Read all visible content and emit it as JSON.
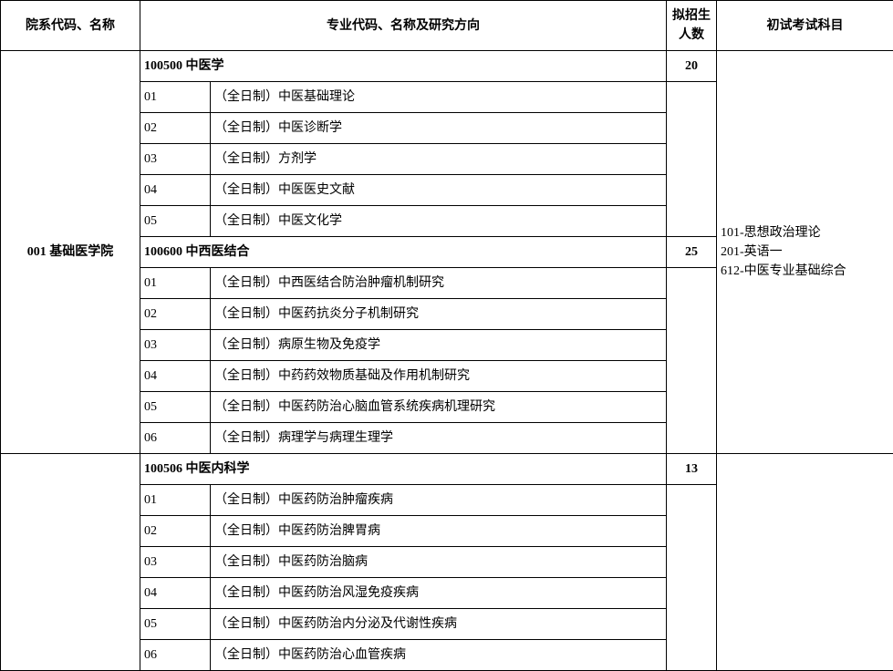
{
  "headers": {
    "dept": "院系代码、名称",
    "major": "专业代码、名称及研究方向",
    "num_l1": "拟招生",
    "num_l2": "人数",
    "exam": "初试考试科目"
  },
  "dept1": {
    "name": "001 基础医学院",
    "exam_l1": "101-思想政治理论",
    "exam_l2": "201-英语一",
    "exam_l3": "612-中医专业基础综合",
    "major1": {
      "title": "100500 中医学",
      "num": "20",
      "directions": [
        {
          "code": "01",
          "name": "（全日制）中医基础理论"
        },
        {
          "code": "02",
          "name": "（全日制）中医诊断学"
        },
        {
          "code": "03",
          "name": "（全日制）方剂学"
        },
        {
          "code": "04",
          "name": "（全日制）中医医史文献"
        },
        {
          "code": "05",
          "name": "（全日制）中医文化学"
        }
      ]
    },
    "major2": {
      "title": "100600 中西医结合",
      "num": "25",
      "directions": [
        {
          "code": "01",
          "name": "（全日制）中西医结合防治肿瘤机制研究"
        },
        {
          "code": "02",
          "name": "（全日制）中医药抗炎分子机制研究"
        },
        {
          "code": "03",
          "name": "（全日制）病原生物及免疫学"
        },
        {
          "code": "04",
          "name": "（全日制）中药药效物质基础及作用机制研究"
        },
        {
          "code": "05",
          "name": "（全日制）中医药防治心脑血管系统疾病机理研究"
        },
        {
          "code": "06",
          "name": "（全日制）病理学与病理生理学"
        }
      ]
    }
  },
  "dept2": {
    "major1": {
      "title": "100506 中医内科学",
      "num": "13",
      "directions": [
        {
          "code": "01",
          "name": "（全日制）中医药防治肿瘤疾病"
        },
        {
          "code": "02",
          "name": "（全日制）中医药防治脾胃病"
        },
        {
          "code": "03",
          "name": "（全日制）中医药防治脑病"
        },
        {
          "code": "04",
          "name": "（全日制）中医药防治风湿免疫疾病"
        },
        {
          "code": "05",
          "name": "（全日制）中医药防治内分泌及代谢性疾病"
        },
        {
          "code": "06",
          "name": "（全日制）中医药防治心血管疾病"
        }
      ]
    }
  },
  "style": {
    "font_family": "SimSun",
    "font_size_pt": 10.5,
    "border_color": "#000000",
    "background_color": "#ffffff",
    "text_color": "#000000"
  }
}
